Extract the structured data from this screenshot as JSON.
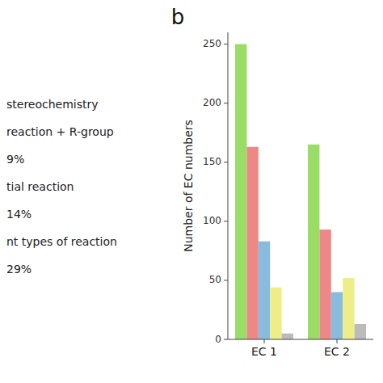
{
  "chart_data": {
    "type": "bar",
    "title": "b",
    "y_label": "Number of EC numbers",
    "categories": [
      "EC 1",
      "EC 2"
    ],
    "series": [
      {
        "color": "#99dd66",
        "values": [
          250,
          165
        ]
      },
      {
        "color": "#ee8888",
        "values": [
          163,
          93
        ]
      },
      {
        "color": "#88bbdd",
        "values": [
          83,
          40
        ]
      },
      {
        "color": "#eeee88",
        "values": [
          44,
          52
        ]
      },
      {
        "color": "#bbbbbb",
        "values": [
          5,
          13
        ]
      }
    ],
    "ylim": [
      0,
      260
    ],
    "yticks": [
      0,
      50,
      100,
      150,
      200,
      250
    ],
    "grid": false,
    "annotations": [
      "stereochemistry",
      "reaction + R-group",
      "9%",
      "tial reaction",
      "14%",
      "nt types of reaction",
      "29%"
    ]
  }
}
